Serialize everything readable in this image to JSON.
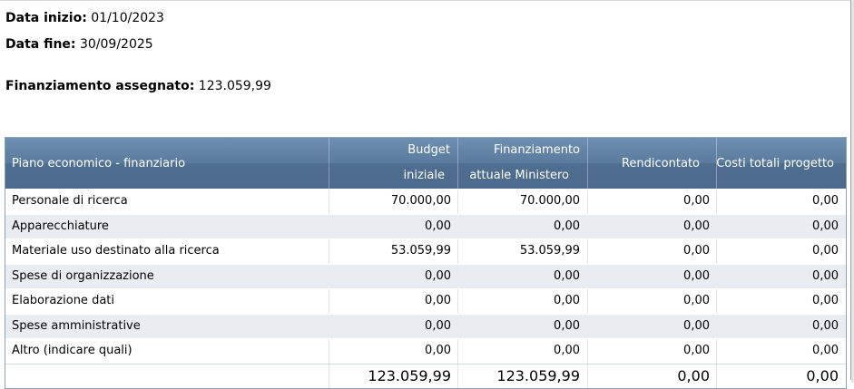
{
  "info": {
    "start_label": "Data inizio:",
    "start_value": "01/10/2023",
    "end_label": "Data fine:",
    "end_value": "30/09/2025",
    "funding_label": "Finanziamento assegnato:",
    "funding_value": "123.059,99"
  },
  "table": {
    "headers": {
      "item": "Piano economico - finanziario",
      "budget_line1": "Budget",
      "budget_line2": "iniziale",
      "funding_line1": "Finanziamento",
      "funding_line2": "attuale Ministero",
      "reported": "Rendicontato",
      "total_costs": "Costi totali progetto"
    },
    "rows": [
      {
        "label": "Personale di ricerca",
        "budget": "70.000,00",
        "funding": "70.000,00",
        "reported": "0,00",
        "total": "0,00"
      },
      {
        "label": "Apparecchiature",
        "budget": "0,00",
        "funding": "0,00",
        "reported": "0,00",
        "total": "0,00"
      },
      {
        "label": "Materiale uso destinato alla ricerca",
        "budget": "53.059,99",
        "funding": "53.059,99",
        "reported": "0,00",
        "total": "0,00"
      },
      {
        "label": "Spese di organizzazione",
        "budget": "0,00",
        "funding": "0,00",
        "reported": "0,00",
        "total": "0,00"
      },
      {
        "label": "Elaborazione dati",
        "budget": "0,00",
        "funding": "0,00",
        "reported": "0,00",
        "total": "0,00"
      },
      {
        "label": "Spese amministrative",
        "budget": "0,00",
        "funding": "0,00",
        "reported": "0,00",
        "total": "0,00"
      },
      {
        "label": "Altro (indicare quali)",
        "budget": "0,00",
        "funding": "0,00",
        "reported": "0,00",
        "total": "0,00"
      }
    ],
    "totals": {
      "budget": "123.059,99",
      "funding": "123.059,99",
      "reported": "0,00",
      "total": "0,00"
    }
  }
}
